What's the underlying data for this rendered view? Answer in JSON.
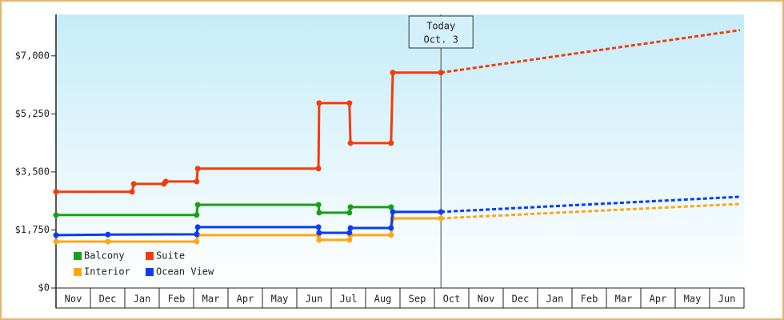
{
  "chart_data": {
    "type": "step-line",
    "categories": [
      "Nov",
      "Dec",
      "Jan",
      "Feb",
      "Mar",
      "Apr",
      "May",
      "Jun",
      "Jul",
      "Aug",
      "Sep",
      "Oct",
      "Nov",
      "Dec",
      "Jan",
      "Feb",
      "Mar",
      "Apr",
      "May",
      "Jun"
    ],
    "xlim": [
      0,
      20
    ],
    "ylim": [
      0,
      8250
    ],
    "yticks": [
      {
        "value": 0,
        "label": "$0"
      },
      {
        "value": 1750,
        "label": "$1,750"
      },
      {
        "value": 3500,
        "label": "$3,500"
      },
      {
        "value": 5250,
        "label": "$5,250"
      },
      {
        "value": 7000,
        "label": "$7,000"
      }
    ],
    "legend": "lower-left",
    "today": {
      "x": 11.19,
      "label": [
        "Today",
        "Oct. 3"
      ]
    },
    "series": [
      {
        "name": "Balcony",
        "color": "#18a018",
        "x": [
          0,
          4.09,
          4.12,
          7.63,
          7.65,
          8.53,
          8.56,
          9.74
        ],
        "values": [
          2200,
          2200,
          2510,
          2510,
          2270,
          2270,
          2440,
          2440
        ]
      },
      {
        "name": "Suite",
        "color": "#f23c0c",
        "x": [
          0,
          2.21,
          2.26,
          3.14,
          3.19,
          4.09,
          4.12,
          7.63,
          7.65,
          8.53,
          8.56,
          9.74,
          9.79,
          11.19
        ],
        "values": [
          2900,
          2900,
          3140,
          3140,
          3210,
          3210,
          3600,
          3600,
          5575,
          5575,
          4370,
          4370,
          6495,
          6495
        ],
        "forecast_x": [
          11.19,
          19.88
        ],
        "forecast_values": [
          6495,
          7775
        ]
      },
      {
        "name": "Interior",
        "color": "#ffa614",
        "x": [
          0,
          1.51,
          4.09,
          4.12,
          7.63,
          7.65,
          8.53,
          8.56,
          9.74,
          9.79,
          11.19
        ],
        "values": [
          1400,
          1400,
          1400,
          1595,
          1595,
          1450,
          1450,
          1595,
          1595,
          2100,
          2100
        ],
        "forecast_x": [
          11.19,
          19.88
        ],
        "forecast_values": [
          2100,
          2535
        ]
      },
      {
        "name": "Ocean View",
        "color": "#0a3cf5",
        "x": [
          0,
          1.51,
          4.09,
          4.12,
          7.63,
          7.65,
          8.53,
          8.56,
          9.74,
          9.79,
          11.19
        ],
        "values": [
          1595,
          1610,
          1620,
          1835,
          1835,
          1665,
          1665,
          1810,
          1810,
          2295,
          2295
        ],
        "forecast_x": [
          11.19,
          19.88
        ],
        "forecast_values": [
          2295,
          2750
        ]
      }
    ]
  }
}
